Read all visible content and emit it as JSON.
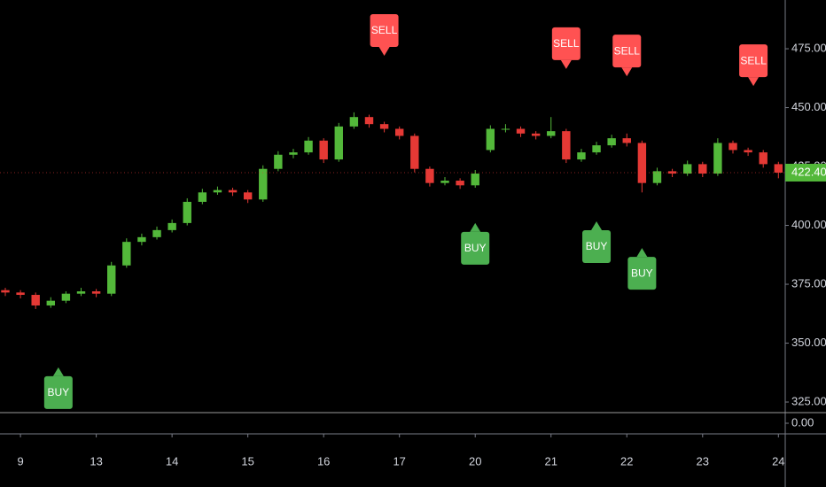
{
  "chart_data": {
    "type": "candlestick",
    "x": [
      -0.2,
      0.0,
      0.2,
      0.4,
      0.6,
      0.8,
      1.0,
      1.2,
      1.4,
      1.6,
      1.8,
      2.0,
      2.2,
      2.4,
      2.6,
      2.8,
      3.0,
      3.2,
      3.4,
      3.6,
      3.8,
      4.0,
      4.2,
      4.4,
      4.6,
      4.8,
      5.0,
      5.2,
      5.4,
      5.6,
      5.8,
      6.0,
      6.2,
      6.4,
      6.6,
      6.8,
      7.0,
      7.2,
      7.4,
      7.6,
      7.8,
      8.0,
      8.2,
      8.4,
      8.6,
      8.8,
      9.0,
      9.2,
      9.4,
      9.6,
      9.8,
      10.0
    ],
    "open": [
      372.5,
      371.5,
      370.5,
      366,
      368,
      371,
      372,
      371,
      383,
      393,
      395,
      398,
      401,
      410,
      414,
      415,
      414,
      411,
      424,
      430,
      431,
      436,
      428,
      442,
      446,
      443,
      441,
      438,
      424,
      418,
      419,
      417,
      432,
      441,
      441,
      439,
      438,
      440,
      428,
      431,
      434,
      437,
      435,
      418,
      423,
      422,
      426,
      422,
      435,
      432,
      431,
      426
    ],
    "high": [
      373.5,
      372.5,
      371.5,
      369.5,
      372,
      373.5,
      373,
      384.5,
      394.5,
      396.5,
      399.5,
      402.5,
      411.5,
      415.5,
      416.5,
      416,
      415,
      425.5,
      431.5,
      432.5,
      437.5,
      437,
      443.5,
      448,
      447,
      444,
      442,
      439,
      425,
      420.5,
      420,
      423.5,
      442.5,
      443,
      442,
      440,
      446,
      441,
      432.5,
      435.5,
      438.5,
      439,
      436,
      424.5,
      424,
      427.5,
      427,
      437,
      436,
      433,
      432,
      427
    ],
    "low": [
      370,
      369,
      364.5,
      365,
      367,
      370,
      369.5,
      370,
      382,
      391.5,
      394,
      397,
      400,
      409,
      413,
      412.5,
      409.5,
      410,
      423,
      428.5,
      430,
      426.5,
      427,
      441,
      441.5,
      439.5,
      436.5,
      422.5,
      416.5,
      417,
      415.5,
      416,
      431,
      439.5,
      437.5,
      436.5,
      437,
      426.5,
      427,
      430,
      433,
      433.5,
      414,
      417,
      420.5,
      421,
      420.5,
      421,
      430.5,
      429.5,
      424.5,
      420
    ],
    "close": [
      371.5,
      370.5,
      366,
      368,
      371,
      372,
      371,
      383,
      393,
      395,
      398,
      401,
      410,
      414,
      415,
      414,
      411,
      424,
      430,
      431,
      436,
      428,
      442,
      446,
      443,
      441,
      438,
      424,
      418,
      419,
      417,
      422,
      441,
      441,
      439,
      438,
      440,
      428,
      431,
      434,
      437,
      435,
      418,
      423,
      422,
      426,
      422,
      435,
      432,
      431,
      426,
      422.4
    ],
    "up_color": "#53b83a",
    "down_color": "#e53935",
    "xlim": [
      -0.27,
      10.09
    ],
    "xticks": [
      {
        "value": 0,
        "label": "9"
      },
      {
        "value": 1,
        "label": "13"
      },
      {
        "value": 2,
        "label": "14"
      },
      {
        "value": 3,
        "label": "15"
      },
      {
        "value": 4,
        "label": "16"
      },
      {
        "value": 5,
        "label": "17"
      },
      {
        "value": 6,
        "label": "20"
      },
      {
        "value": 7,
        "label": "21"
      },
      {
        "value": 8,
        "label": "22"
      },
      {
        "value": 9,
        "label": "23"
      },
      {
        "value": 10,
        "label": "24"
      }
    ],
    "ylim": [
      320.5,
      495.7
    ],
    "yticks": [
      {
        "value": 325,
        "label": "325.00"
      },
      {
        "value": 350,
        "label": "350.00"
      },
      {
        "value": 375,
        "label": "375.00"
      },
      {
        "value": 400,
        "label": "400.00"
      },
      {
        "value": 425,
        "label": "425.00"
      },
      {
        "value": 450,
        "label": "450.00"
      },
      {
        "value": 475,
        "label": "475.00"
      }
    ],
    "last_price": {
      "value": 422.4,
      "label": "422.40"
    },
    "signals": [
      {
        "label": "BUY",
        "x": 0.5,
        "price": 339.7,
        "color": "#4caf50"
      },
      {
        "label": "SELL",
        "x": 4.8,
        "price": 472,
        "color": "#ff5252"
      },
      {
        "label": "BUY",
        "x": 6.0,
        "price": 401,
        "color": "#4caf50"
      },
      {
        "label": "SELL",
        "x": 7.2,
        "price": 466.4,
        "color": "#ff5252"
      },
      {
        "label": "BUY",
        "x": 7.6,
        "price": 401.7,
        "color": "#4caf50"
      },
      {
        "label": "SELL",
        "x": 8.0,
        "price": 463.3,
        "color": "#ff5252"
      },
      {
        "label": "BUY",
        "x": 8.2,
        "price": 390.4,
        "color": "#4caf50"
      },
      {
        "label": "SELL",
        "x": 9.67,
        "price": 459.2,
        "color": "#ff5252"
      }
    ],
    "lower_pane": {
      "yticks": [
        {
          "value": 0,
          "label": "0.00"
        }
      ]
    }
  }
}
